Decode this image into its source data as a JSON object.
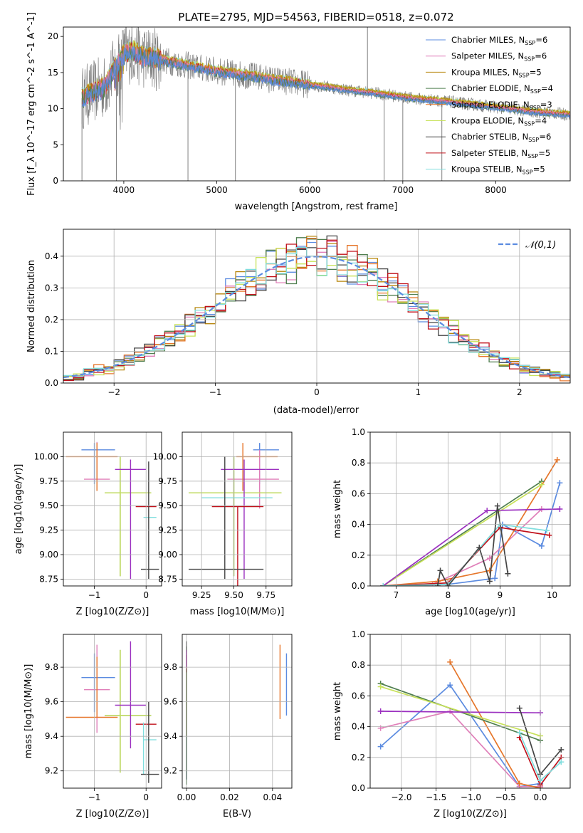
{
  "figure": {
    "title": "PLATE=2795, MJD=54563, FIBERID=0518, z=0.072"
  },
  "models": [
    {
      "name": "Chabrier MILES",
      "nssp": "6",
      "color": "#5b8be0"
    },
    {
      "name": "Salpeter MILES",
      "nssp": "6",
      "color": "#e07fb9"
    },
    {
      "name": "Kroupa MILES",
      "nssp": "5",
      "color": "#b8860b"
    },
    {
      "name": "Chabrier ELODIE",
      "nssp": "4",
      "color": "#4f7f4f"
    },
    {
      "name": "Salpeter ELODIE",
      "nssp": "3",
      "color": "#e6762a"
    },
    {
      "name": "Kroupa ELODIE",
      "nssp": "4",
      "color": "#c8e25a"
    },
    {
      "name": "Chabrier STELIB",
      "nssp": "6",
      "color": "#444444"
    },
    {
      "name": "Salpeter STELIB",
      "nssp": "5",
      "color": "#c0101a"
    },
    {
      "name": "Kroupa STELIB",
      "nssp": "5",
      "color": "#7fdede"
    }
  ],
  "chart_data": [
    {
      "type": "line",
      "id": "spectrum",
      "xlabel": "wavelength [Angstrom, rest frame]",
      "ylabel": "Flux [f_λ 10^-17 erg cm^-2 s^-1 A^-1]",
      "xlim": [
        3350,
        8800
      ],
      "ylim": [
        0,
        21.3
      ],
      "xticks": [
        4000,
        5000,
        6000,
        7000,
        8000
      ],
      "yticks": [
        0,
        5,
        10,
        15,
        20
      ],
      "legend_position": "top-right",
      "data_color": "#808080",
      "continuum": {
        "x": [
          3550,
          3700,
          3800,
          3900,
          4000,
          4100,
          4200,
          4400,
          4600,
          4800,
          5000,
          5200,
          5400,
          5600,
          5800,
          6000,
          6200,
          6400,
          6600,
          6800,
          7000,
          7200,
          7400,
          7600,
          7800,
          8000,
          8200,
          8400,
          8600,
          8800
        ],
        "y": [
          11.5,
          12.5,
          13.0,
          15.5,
          17.5,
          18.0,
          17.2,
          16.8,
          16.2,
          15.7,
          15.2,
          14.8,
          14.5,
          14.0,
          13.7,
          13.3,
          13.0,
          12.6,
          12.3,
          12.0,
          11.6,
          11.3,
          11.1,
          10.8,
          10.5,
          10.2,
          9.9,
          9.6,
          9.4,
          9.2
        ]
      },
      "spikes": [
        {
          "x": 3550,
          "y": 0
        },
        {
          "x": 3920,
          "y": 0
        },
        {
          "x": 4690,
          "y": 0
        },
        {
          "x": 5200,
          "y": 0
        },
        {
          "x": 6620,
          "y": 21.3
        },
        {
          "x": 6800,
          "y": 0
        },
        {
          "x": 7000,
          "y": 0
        },
        {
          "x": 7420,
          "y": 0
        }
      ]
    },
    {
      "type": "line",
      "id": "residuals",
      "xlabel": "(data-model)/error",
      "ylabel": "Normed distribution",
      "xlim": [
        -2.5,
        2.5
      ],
      "ylim": [
        0,
        0.485
      ],
      "xticks": [
        -2,
        -1,
        0,
        1,
        2
      ],
      "yticks": [
        0.0,
        0.1,
        0.2,
        0.3,
        0.4
      ],
      "legend_label": "𝒩(0,1)",
      "legend_position": "top-right",
      "normal_color": "#5b8be0",
      "bin_width": 0.1
    },
    {
      "type": "scatter",
      "id": "age-vs-z",
      "xlabel": "Z [log10(Z/Z⊙)]",
      "ylabel": "age  [log10(age/yr)]",
      "xlim": [
        -1.6,
        0.3
      ],
      "ylim": [
        8.68,
        10.25
      ],
      "xticks": [
        -1,
        0
      ],
      "yticks": [
        8.75,
        9.0,
        9.25,
        9.5,
        9.75,
        10.0
      ],
      "points": [
        {
          "x": -1.0,
          "xerr": [
            0.25,
            0.4
          ],
          "y": 10.07,
          "yerr": [
            0.35,
            0.07
          ],
          "color": "#5b8be0"
        },
        {
          "x": -0.95,
          "xerr": [
            0.25,
            0.25
          ],
          "y": 9.77,
          "yerr": [
            0.0,
            0.38
          ],
          "color": "#e07fb9"
        },
        {
          "x": -0.95,
          "xerr": [
            0.6,
            0.4
          ],
          "y": 10.0,
          "yerr": [
            0.35,
            0.14
          ],
          "color": "#e6762a"
        },
        {
          "x": -0.5,
          "xerr": [
            0.3,
            0.6
          ],
          "y": 9.63,
          "yerr": [
            0.85,
            0.37
          ],
          "color": "#4f7f4f"
        },
        {
          "x": -0.5,
          "xerr": [
            0.3,
            0.6
          ],
          "y": 9.63,
          "yerr": [
            0.85,
            0.37
          ],
          "color": "#c8e25a"
        },
        {
          "x": -0.3,
          "xerr": [
            0.3,
            0.3
          ],
          "y": 9.87,
          "yerr": [
            1.12,
            0.1
          ],
          "color": "#9b30c0"
        },
        {
          "x": 0.0,
          "xerr": [
            0.2,
            0.2
          ],
          "y": 9.49,
          "yerr": [
            0.0,
            0.0
          ],
          "color": "#c0101a"
        },
        {
          "x": -0.05,
          "xerr": [
            0.0,
            0.25
          ],
          "y": 9.38,
          "yerr": [
            0.0,
            0.0
          ],
          "color": "#7fdede"
        },
        {
          "x": 0.05,
          "xerr": [
            0.15,
            0.2
          ],
          "y": 8.85,
          "yerr": [
            0.1,
            1.1
          ],
          "color": "#444444"
        }
      ]
    },
    {
      "type": "scatter",
      "id": "age-vs-mass",
      "xlabel": "mass [log10(M/M⊙)]",
      "ylabel": "",
      "xlim": [
        9.1,
        9.95
      ],
      "ylim": [
        8.68,
        10.25
      ],
      "xticks": [
        9.25,
        9.5,
        9.75
      ],
      "yticks": [
        8.75,
        9.0,
        9.25,
        9.5,
        9.75,
        10.0
      ],
      "points": [
        {
          "x": 9.7,
          "xerr": [
            0.05,
            0.15
          ],
          "y": 10.07,
          "yerr": [
            0.35,
            0.07
          ],
          "color": "#5b8be0"
        },
        {
          "x": 9.7,
          "xerr": [
            0.25,
            0.15
          ],
          "y": 9.77,
          "yerr": [
            0.3,
            0.3
          ],
          "color": "#e07fb9"
        },
        {
          "x": 9.57,
          "xerr": [
            0.05,
            0.27
          ],
          "y": 10.0,
          "yerr": [
            0.35,
            0.14
          ],
          "color": "#e6762a"
        },
        {
          "x": 9.5,
          "xerr": [
            0.35,
            0.37
          ],
          "y": 9.63,
          "yerr": [
            0.85,
            0.37
          ],
          "color": "#4f7f4f"
        },
        {
          "x": 9.5,
          "xerr": [
            0.35,
            0.37
          ],
          "y": 9.63,
          "yerr": [
            0.85,
            0.37
          ],
          "color": "#c8e25a"
        },
        {
          "x": 9.58,
          "xerr": [
            0.18,
            0.27
          ],
          "y": 9.87,
          "yerr": [
            1.12,
            0.1
          ],
          "color": "#9b30c0"
        },
        {
          "x": 9.53,
          "xerr": [
            0.2,
            0.2
          ],
          "y": 9.49,
          "yerr": [
            1.1,
            0.0
          ],
          "color": "#c0101a"
        },
        {
          "x": 9.5,
          "xerr": [
            0.25,
            0.3
          ],
          "y": 9.58,
          "yerr": [
            0.0,
            0.0
          ],
          "color": "#7fdede"
        },
        {
          "x": 9.43,
          "xerr": [
            0.28,
            0.3
          ],
          "y": 8.85,
          "yerr": [
            0.1,
            1.15
          ],
          "color": "#444444"
        }
      ]
    },
    {
      "type": "line",
      "id": "mass-weight-vs-age",
      "xlabel": "age  [log10(age/yr)]",
      "ylabel": "mass weight",
      "xlim": [
        6.5,
        10.35
      ],
      "ylim": [
        0,
        1.0
      ],
      "xticks": [
        7,
        8,
        9,
        10
      ],
      "yticks": [
        0.0,
        0.2,
        0.4,
        0.6,
        0.8,
        1.0
      ],
      "series": [
        {
          "color": "#5b8be0",
          "x": [
            6.75,
            8.0,
            8.9,
            9.05,
            9.8,
            10.15
          ],
          "y": [
            0.0,
            0.01,
            0.05,
            0.4,
            0.26,
            0.67
          ]
        },
        {
          "color": "#e07fb9",
          "x": [
            6.75,
            7.7,
            8.8,
            9.8
          ],
          "y": [
            0.0,
            0.01,
            0.18,
            0.5
          ]
        },
        {
          "color": "#e6762a",
          "x": [
            6.75,
            7.8,
            8.8,
            10.1
          ],
          "y": [
            0.0,
            0.03,
            0.1,
            0.82
          ]
        },
        {
          "color": "#4f7f4f",
          "x": [
            6.75,
            9.8
          ],
          "y": [
            0.0,
            0.68
          ]
        },
        {
          "color": "#c8e25a",
          "x": [
            6.75,
            9.8
          ],
          "y": [
            0.0,
            0.66
          ]
        },
        {
          "color": "#9b30c0",
          "x": [
            6.75,
            8.75,
            10.15
          ],
          "y": [
            0.0,
            0.49,
            0.5
          ]
        },
        {
          "color": "#c0101a",
          "x": [
            6.75,
            8.0,
            9.0,
            9.95
          ],
          "y": [
            0.0,
            0.02,
            0.38,
            0.33
          ]
        },
        {
          "color": "#7fdede",
          "x": [
            6.75,
            8.0,
            9.0,
            9.9
          ],
          "y": [
            0.0,
            0.01,
            0.4,
            0.36
          ]
        },
        {
          "color": "#444444",
          "x": [
            7.8,
            7.85,
            8.0,
            8.6,
            8.8,
            8.95,
            9.15
          ],
          "y": [
            0.0,
            0.1,
            0.0,
            0.25,
            0.03,
            0.52,
            0.08
          ]
        }
      ]
    },
    {
      "type": "scatter",
      "id": "mass-vs-z",
      "xlabel": "Z [log10(Z/Z⊙)]",
      "ylabel": "mass [log10(M/M⊙)]",
      "xlim": [
        -1.6,
        0.3
      ],
      "ylim": [
        9.1,
        9.99
      ],
      "xticks": [
        -1,
        0
      ],
      "yticks": [
        9.2,
        9.4,
        9.6,
        9.8
      ],
      "points": [
        {
          "x": -1.0,
          "xerr": [
            0.25,
            0.4
          ],
          "y": 9.74,
          "yerr": [
            0.2,
            0.14
          ],
          "color": "#5b8be0"
        },
        {
          "x": -0.95,
          "xerr": [
            0.25,
            0.25
          ],
          "y": 9.67,
          "yerr": [
            0.25,
            0.26
          ],
          "color": "#e07fb9"
        },
        {
          "x": -0.95,
          "xerr": [
            0.6,
            0.4
          ],
          "y": 9.51,
          "yerr": [
            0.0,
            0.35
          ],
          "color": "#e6762a"
        },
        {
          "x": -0.5,
          "xerr": [
            0.3,
            0.6
          ],
          "y": 9.52,
          "yerr": [
            0.33,
            0.38
          ],
          "color": "#4f7f4f"
        },
        {
          "x": -0.5,
          "xerr": [
            0.3,
            0.6
          ],
          "y": 9.52,
          "yerr": [
            0.33,
            0.38
          ],
          "color": "#c8e25a"
        },
        {
          "x": -0.3,
          "xerr": [
            0.3,
            0.3
          ],
          "y": 9.58,
          "yerr": [
            0.25,
            0.37
          ],
          "color": "#9b30c0"
        },
        {
          "x": 0.0,
          "xerr": [
            0.2,
            0.2
          ],
          "y": 9.47,
          "yerr": [
            0.0,
            0.0
          ],
          "color": "#c0101a"
        },
        {
          "x": -0.05,
          "xerr": [
            0.0,
            0.25
          ],
          "y": 9.38,
          "yerr": [
            0.2,
            0.1
          ],
          "color": "#7fdede"
        },
        {
          "x": 0.05,
          "xerr": [
            0.15,
            0.2
          ],
          "y": 9.18,
          "yerr": [
            0.05,
            0.42
          ],
          "color": "#444444"
        }
      ]
    },
    {
      "type": "scatter",
      "id": "mass-vs-ebv",
      "xlabel": "E(B-V)",
      "ylabel": "",
      "xlim": [
        -0.002,
        0.049
      ],
      "ylim": [
        9.1,
        9.99
      ],
      "xticks": [
        0.0,
        0.02,
        0.04
      ],
      "yticks": [
        9.2,
        9.4,
        9.6,
        9.8
      ],
      "points": [
        {
          "x": 0.0,
          "y": 9.5,
          "yerr": [
            0.38,
            0.42
          ],
          "color": "#4f7f4f"
        },
        {
          "x": 0.0,
          "y": 9.55,
          "yerr": [
            0.35,
            0.35
          ],
          "color": "#c8e25a"
        },
        {
          "x": 0.0,
          "y": 9.82,
          "yerr": [
            0.05,
            0.05
          ],
          "color": "#c0101a"
        },
        {
          "x": 0.0,
          "y": 9.3,
          "yerr": [
            0.15,
            0.1
          ],
          "color": "#7fdede"
        },
        {
          "x": 0.0,
          "y": 9.6,
          "yerr": [
            0.45,
            0.35
          ],
          "color": "#444444"
        },
        {
          "x": 0.0,
          "y": 9.84,
          "yerr": [
            0.05,
            0.05
          ],
          "color": "#e07fb9"
        },
        {
          "x": 0.0,
          "y": 9.85,
          "yerr": [
            0.05,
            0.05
          ],
          "color": "#9b30c0"
        },
        {
          "x": 0.0435,
          "y": 9.7,
          "yerr": [
            0.2,
            0.23
          ],
          "color": "#e6762a"
        },
        {
          "x": 0.0465,
          "y": 9.7,
          "yerr": [
            0.18,
            0.18
          ],
          "color": "#5b8be0"
        }
      ]
    },
    {
      "type": "line",
      "id": "mass-weight-vs-z",
      "xlabel": "Z [log10(Z/Z⊙)]",
      "ylabel": "mass weight",
      "xlim": [
        -2.45,
        0.43
      ],
      "ylim": [
        0,
        1.0
      ],
      "xticks": [
        -2.0,
        -1.5,
        -1.0,
        -0.5,
        0.0
      ],
      "yticks": [
        0.0,
        0.2,
        0.4,
        0.6,
        0.8,
        1.0
      ],
      "series": [
        {
          "color": "#5b8be0",
          "x": [
            -2.3,
            -1.3,
            -0.3,
            0.0
          ],
          "y": [
            0.27,
            0.67,
            0.01,
            0.03
          ]
        },
        {
          "color": "#e07fb9",
          "x": [
            -2.3,
            -1.3,
            -0.3,
            0.0
          ],
          "y": [
            0.39,
            0.5,
            0.01,
            0.01
          ]
        },
        {
          "color": "#e6762a",
          "x": [
            -1.3,
            -0.3,
            0.0
          ],
          "y": [
            0.82,
            0.03,
            0.0
          ]
        },
        {
          "color": "#4f7f4f",
          "x": [
            -2.3,
            0.0
          ],
          "y": [
            0.68,
            0.31
          ]
        },
        {
          "color": "#c8e25a",
          "x": [
            -2.3,
            0.0
          ],
          "y": [
            0.66,
            0.34
          ]
        },
        {
          "color": "#9b30c0",
          "x": [
            -2.3,
            0.0
          ],
          "y": [
            0.5,
            0.49
          ]
        },
        {
          "color": "#c0101a",
          "x": [
            -0.3,
            0.0,
            0.3
          ],
          "y": [
            0.33,
            0.02,
            0.2
          ]
        },
        {
          "color": "#7fdede",
          "x": [
            -0.3,
            0.0,
            0.3
          ],
          "y": [
            0.36,
            0.05,
            0.17
          ]
        },
        {
          "color": "#444444",
          "x": [
            -0.3,
            0.0,
            0.3
          ],
          "y": [
            0.52,
            0.09,
            0.25
          ]
        }
      ]
    }
  ]
}
